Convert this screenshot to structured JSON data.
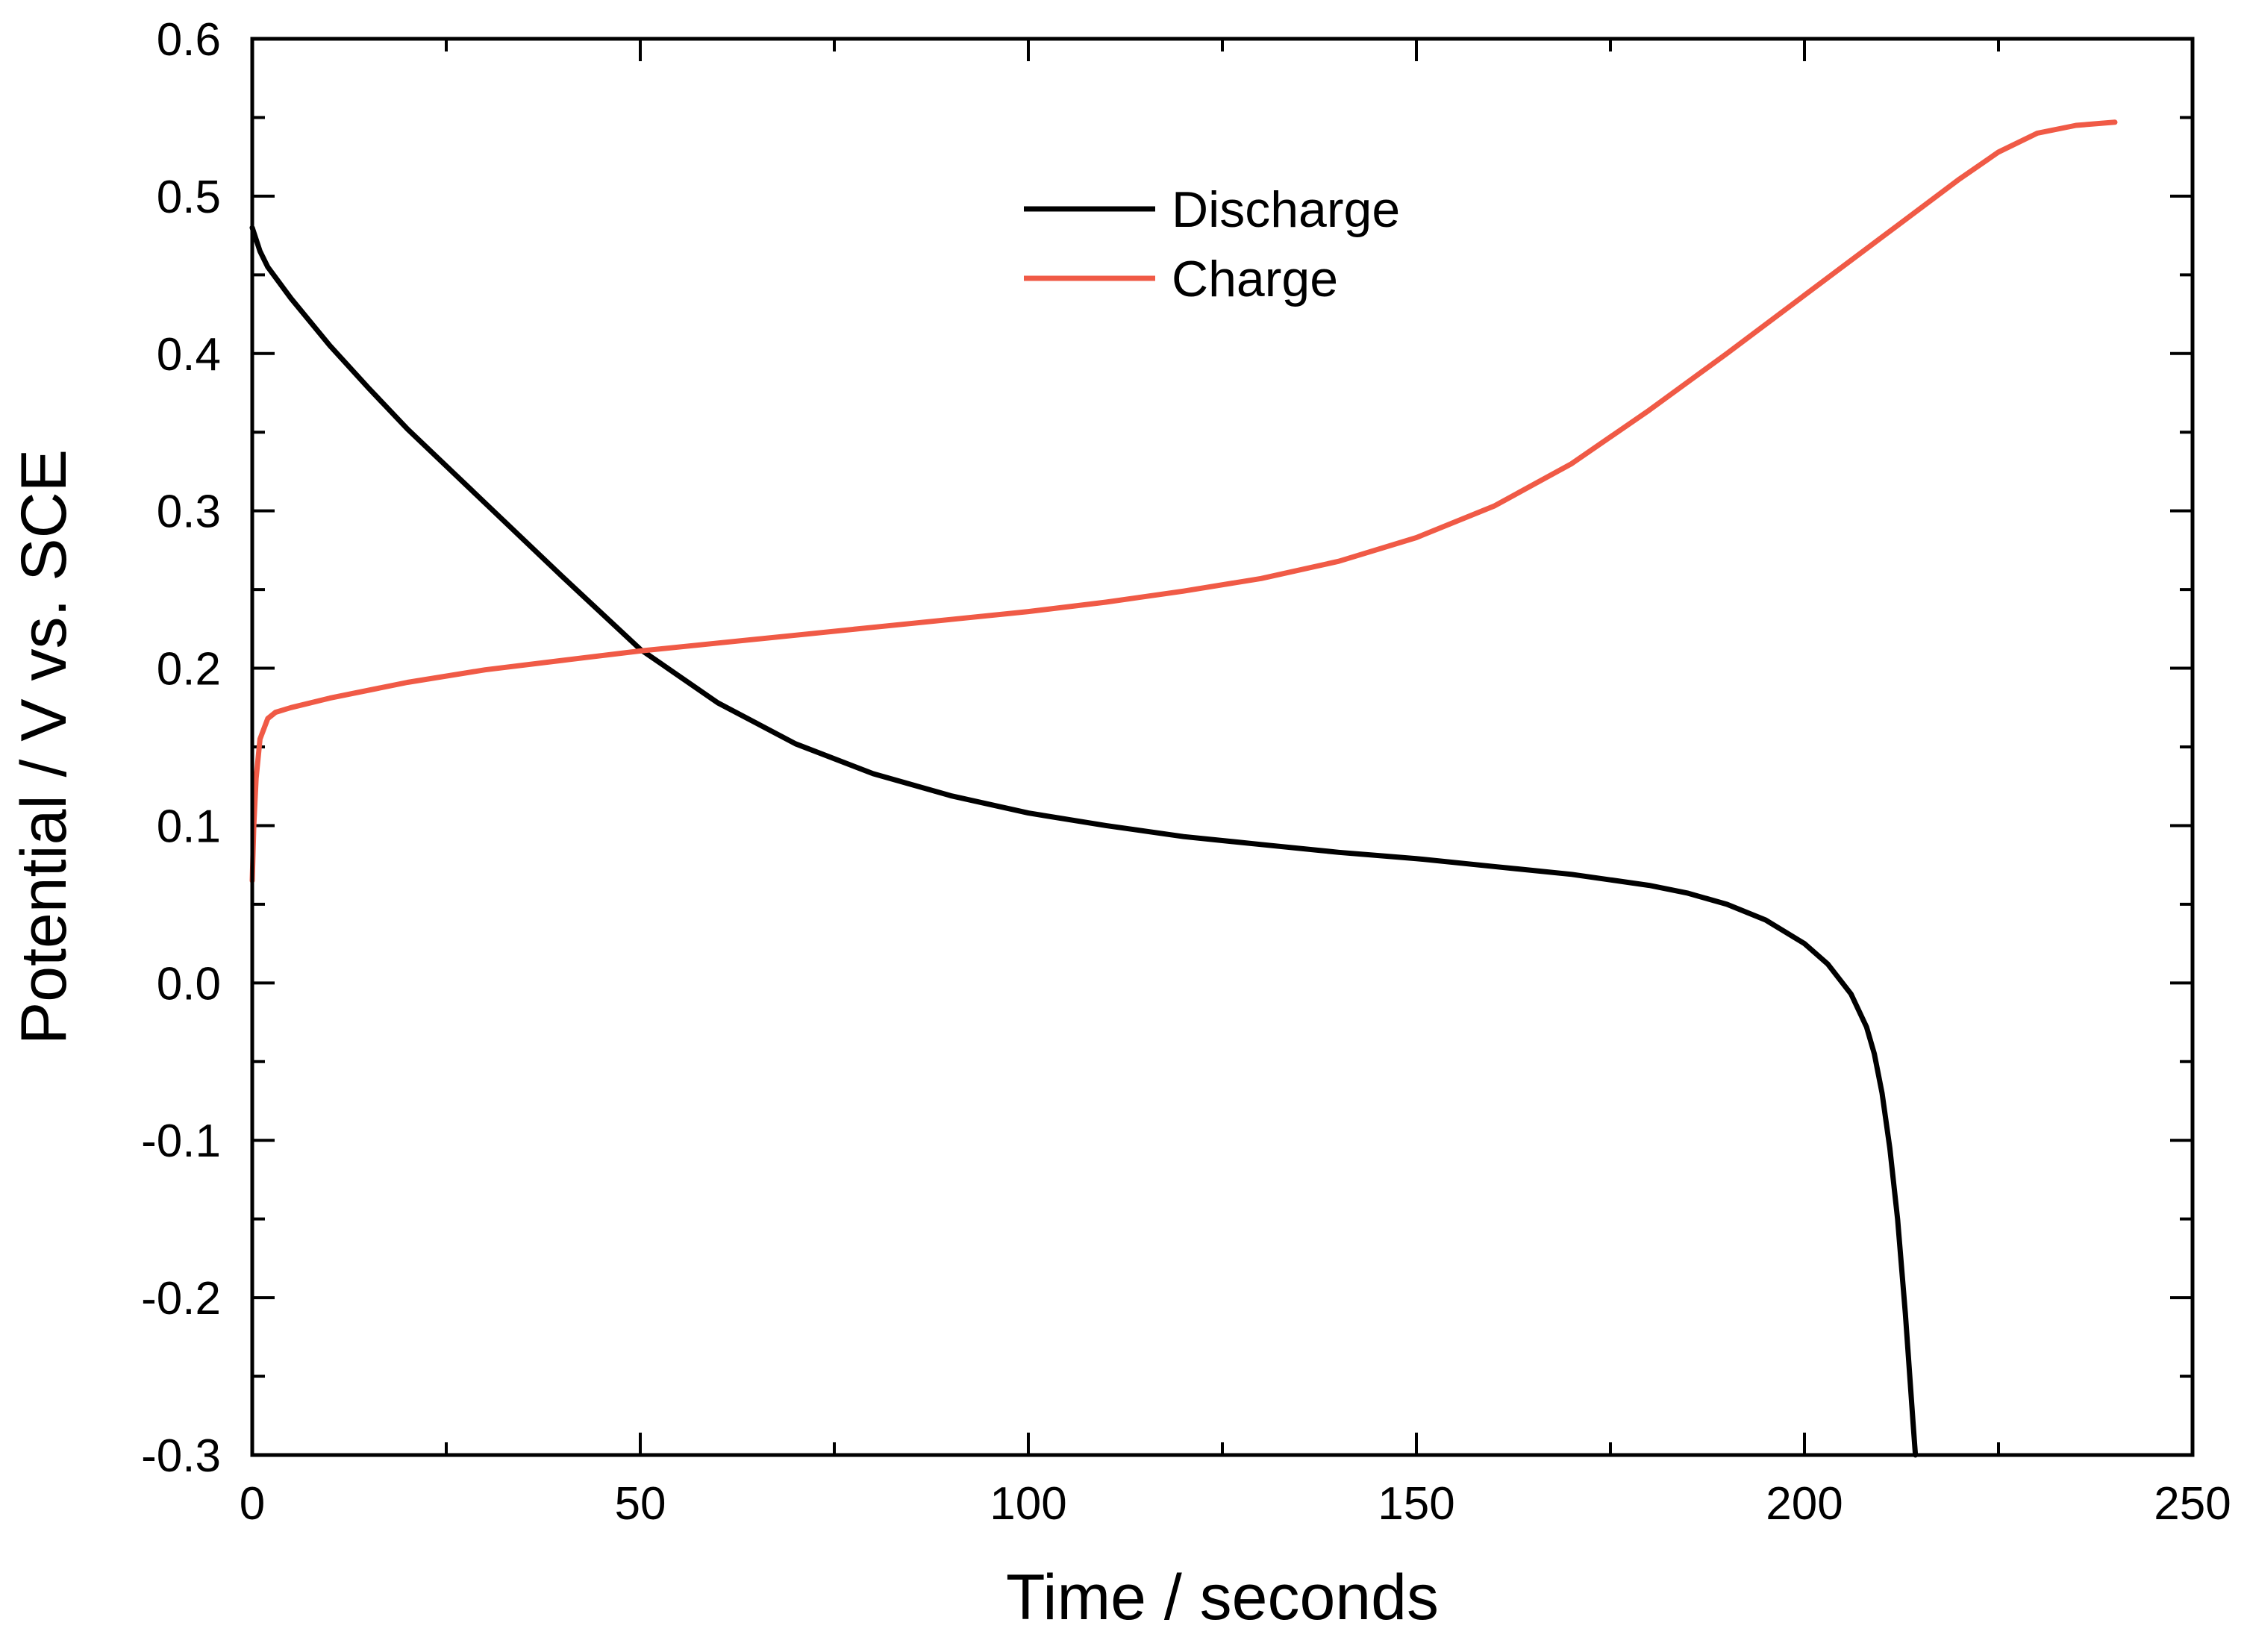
{
  "chart_data": {
    "type": "line",
    "title": "",
    "xlabel": "Time / seconds",
    "ylabel": "Potential / V vs. SCE",
    "xlim": [
      0,
      250
    ],
    "ylim": [
      -0.3,
      0.6
    ],
    "xticks": [
      0,
      50,
      100,
      150,
      200,
      250
    ],
    "xtick_labels": [
      "0",
      "50",
      "100",
      "150",
      "200",
      "250"
    ],
    "yticks": [
      -0.3,
      -0.2,
      -0.1,
      0.0,
      0.1,
      0.2,
      0.3,
      0.4,
      0.5,
      0.6
    ],
    "ytick_labels": [
      "-0.3",
      "-0.2",
      "-0.1",
      "0.0",
      "0.1",
      "0.2",
      "0.3",
      "0.4",
      "0.5",
      "0.6"
    ],
    "grid": false,
    "legend_position": "top-center",
    "series": [
      {
        "name": "Discharge",
        "color": "#000000",
        "x": [
          0,
          1,
          2,
          5,
          10,
          15,
          20,
          30,
          40,
          50,
          60,
          70,
          80,
          90,
          100,
          110,
          120,
          130,
          140,
          150,
          160,
          170,
          180,
          185,
          190,
          195,
          200,
          203,
          206,
          208,
          209,
          210,
          211,
          212,
          213,
          213.5,
          214,
          214.3
        ],
        "y": [
          0.48,
          0.465,
          0.455,
          0.435,
          0.405,
          0.378,
          0.352,
          0.305,
          0.258,
          0.212,
          0.178,
          0.152,
          0.133,
          0.119,
          0.108,
          0.1,
          0.093,
          0.088,
          0.083,
          0.079,
          0.074,
          0.069,
          0.062,
          0.057,
          0.05,
          0.04,
          0.025,
          0.012,
          -0.007,
          -0.028,
          -0.045,
          -0.07,
          -0.105,
          -0.15,
          -0.21,
          -0.245,
          -0.28,
          -0.3
        ]
      },
      {
        "name": "Charge",
        "color": "#f05a46",
        "x": [
          0,
          0.2,
          0.5,
          1,
          2,
          3,
          5,
          10,
          20,
          30,
          40,
          50,
          60,
          70,
          80,
          90,
          100,
          110,
          120,
          130,
          140,
          150,
          160,
          170,
          180,
          190,
          200,
          210,
          220,
          225,
          230,
          235,
          240
        ],
        "y": [
          0.065,
          0.1,
          0.13,
          0.155,
          0.168,
          0.172,
          0.175,
          0.181,
          0.191,
          0.199,
          0.205,
          0.211,
          0.216,
          0.221,
          0.226,
          0.231,
          0.236,
          0.242,
          0.249,
          0.257,
          0.268,
          0.283,
          0.303,
          0.33,
          0.364,
          0.4,
          0.437,
          0.474,
          0.511,
          0.528,
          0.54,
          0.545,
          0.547
        ]
      }
    ]
  }
}
